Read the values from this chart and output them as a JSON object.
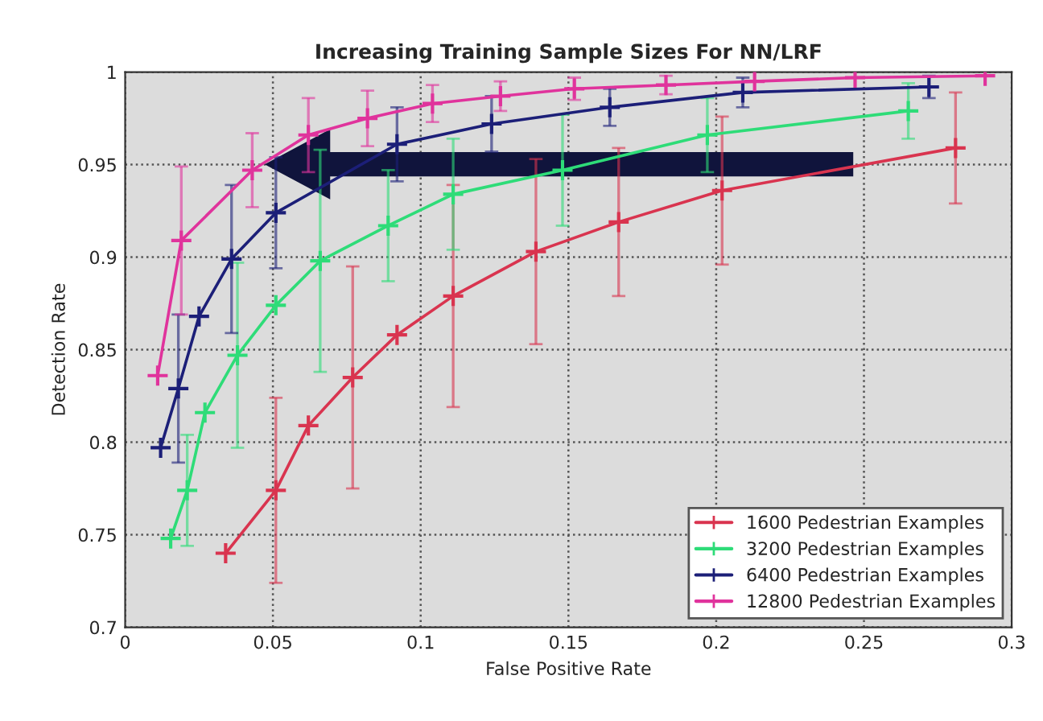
{
  "chart_data": {
    "type": "line",
    "title": "Increasing Training Sample Sizes For NN/LRF",
    "xlabel": "False Positive Rate",
    "ylabel": "Detection Rate",
    "xlim": [
      0,
      0.3
    ],
    "xticks": [
      0,
      0.05,
      0.1,
      0.15,
      0.2,
      0.25,
      0.3
    ],
    "ylim": [
      0.7,
      1
    ],
    "yticks": [
      0.7,
      0.75,
      0.8,
      0.85,
      0.9,
      0.95,
      1
    ],
    "grid": true,
    "legend": "bottom right",
    "marker": "cross",
    "series": [
      {
        "name": "1600 Pedestrian Examples",
        "color": "#d9344f",
        "x": [
          0.034,
          0.051,
          0.062,
          0.077,
          0.092,
          0.111,
          0.139,
          0.167,
          0.202,
          0.281
        ],
        "values": [
          0.74,
          0.774,
          0.809,
          0.835,
          0.858,
          0.879,
          0.903,
          0.919,
          0.936,
          0.959
        ],
        "errors": [
          null,
          0.05,
          null,
          0.06,
          null,
          0.06,
          0.05,
          0.04,
          0.04,
          0.03
        ]
      },
      {
        "name": "3200 Pedestrian Examples",
        "color": "#2edc78",
        "x": [
          0.0154,
          0.021,
          0.027,
          0.038,
          0.051,
          0.066,
          0.089,
          0.111,
          0.148,
          0.197,
          0.265
        ],
        "values": [
          0.748,
          0.774,
          0.816,
          0.847,
          0.874,
          0.898,
          0.917,
          0.934,
          0.947,
          0.966,
          0.979
        ],
        "errors": [
          null,
          0.03,
          null,
          0.05,
          null,
          0.06,
          0.03,
          0.03,
          0.03,
          0.02,
          0.015
        ]
      },
      {
        "name": "6400 Pedestrian Examples",
        "color": "#1c1f78",
        "x": [
          0.012,
          0.018,
          0.025,
          0.036,
          0.051,
          0.092,
          0.124,
          0.164,
          0.209,
          0.272
        ],
        "values": [
          0.797,
          0.829,
          0.868,
          0.899,
          0.924,
          0.961,
          0.972,
          0.981,
          0.989,
          0.992
        ],
        "errors": [
          null,
          0.04,
          null,
          0.04,
          0.03,
          0.02,
          0.015,
          0.01,
          0.008,
          0.006
        ]
      },
      {
        "name": "12800 Pedestrian Examples",
        "color": "#e0339c",
        "x": [
          0.011,
          0.019,
          0.043,
          0.062,
          0.082,
          0.104,
          0.127,
          0.152,
          0.183,
          0.213,
          0.247,
          0.291
        ],
        "values": [
          0.836,
          0.909,
          0.947,
          0.966,
          0.975,
          0.983,
          0.987,
          0.991,
          0.993,
          0.995,
          0.997,
          0.998
        ],
        "errors": [
          null,
          0.04,
          0.02,
          0.02,
          0.015,
          0.01,
          0.008,
          0.006,
          0.005,
          null,
          null,
          null
        ]
      }
    ]
  }
}
